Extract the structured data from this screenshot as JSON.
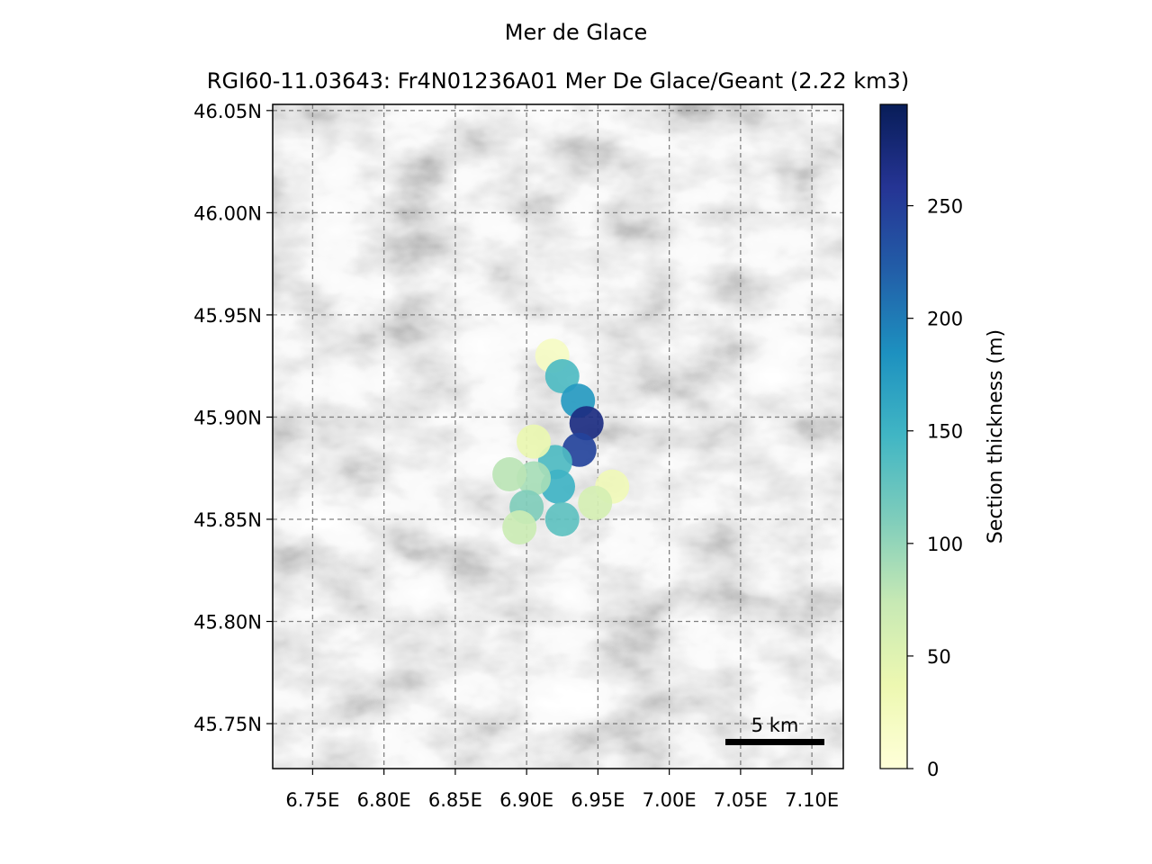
{
  "figure": {
    "title": "Mer de Glace",
    "subtitle": "RGI60-11.03643: Fr4N01236A01 Mer De Glace/Geant (2.22 km3)"
  },
  "map": {
    "background": "shaded relief (grayscale hillshade)",
    "grid": true,
    "lon_range": [
      6.722,
      7.122
    ],
    "lat_range": [
      45.728,
      46.053
    ],
    "x_ticks": [
      {
        "value": 6.75,
        "label": "6.75E"
      },
      {
        "value": 6.8,
        "label": "6.80E"
      },
      {
        "value": 6.85,
        "label": "6.85E"
      },
      {
        "value": 6.9,
        "label": "6.90E"
      },
      {
        "value": 6.95,
        "label": "6.95E"
      },
      {
        "value": 7.0,
        "label": "7.00E"
      },
      {
        "value": 7.05,
        "label": "7.05E"
      },
      {
        "value": 7.1,
        "label": "7.10E"
      }
    ],
    "y_ticks": [
      {
        "value": 46.05,
        "label": "46.05N"
      },
      {
        "value": 46.0,
        "label": "46.00N"
      },
      {
        "value": 45.95,
        "label": "45.95N"
      },
      {
        "value": 45.9,
        "label": "45.90N"
      },
      {
        "value": 45.85,
        "label": "45.85N"
      },
      {
        "value": 45.8,
        "label": "45.80N"
      },
      {
        "value": 45.75,
        "label": "45.75N"
      }
    ],
    "scale_bar": {
      "label": "5 km",
      "length_km": 5
    },
    "glacier_sections": [
      {
        "lon": 6.918,
        "lat": 45.93,
        "thickness": 20
      },
      {
        "lon": 6.925,
        "lat": 45.92,
        "thickness": 140
      },
      {
        "lon": 6.936,
        "lat": 45.908,
        "thickness": 175
      },
      {
        "lon": 6.942,
        "lat": 45.897,
        "thickness": 270
      },
      {
        "lon": 6.937,
        "lat": 45.884,
        "thickness": 245
      },
      {
        "lon": 6.92,
        "lat": 45.878,
        "thickness": 140
      },
      {
        "lon": 6.922,
        "lat": 45.866,
        "thickness": 150
      },
      {
        "lon": 6.905,
        "lat": 45.87,
        "thickness": 90
      },
      {
        "lon": 6.888,
        "lat": 45.872,
        "thickness": 80
      },
      {
        "lon": 6.9,
        "lat": 45.856,
        "thickness": 110
      },
      {
        "lon": 6.895,
        "lat": 45.846,
        "thickness": 70
      },
      {
        "lon": 6.925,
        "lat": 45.85,
        "thickness": 130
      },
      {
        "lon": 6.905,
        "lat": 45.888,
        "thickness": 40
      },
      {
        "lon": 6.96,
        "lat": 45.866,
        "thickness": 30
      },
      {
        "lon": 6.948,
        "lat": 45.858,
        "thickness": 60
      }
    ]
  },
  "colorbar": {
    "label": "Section thickness (m)",
    "vmin": 0,
    "vmax": 295,
    "ticks": [
      0,
      50,
      100,
      150,
      200,
      250
    ],
    "colormap": "YlGnBu",
    "stops": [
      "#ffffd9",
      "#edf8b1",
      "#c7e9b4",
      "#7fcdbb",
      "#41b6c4",
      "#1d91c0",
      "#225ea8",
      "#253494",
      "#081d58"
    ]
  }
}
